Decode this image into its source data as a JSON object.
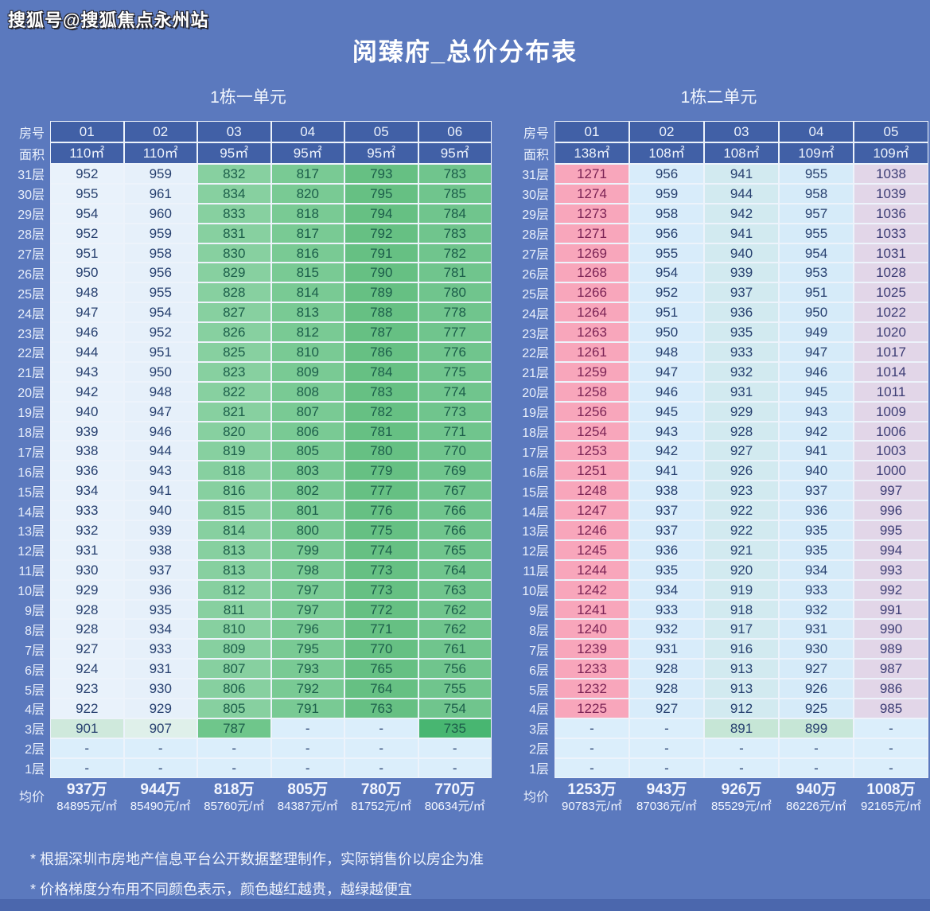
{
  "watermark": "搜狐号@搜狐焦点永州站",
  "title": "阅臻府_总价分布表",
  "labels": {
    "room": "房号",
    "area": "面积",
    "avg": "均价"
  },
  "footnotes": [
    "* 根据深圳市房地产信息平台公开数据整理制作，实际销售价以房企为准",
    "* 价格梯度分布用不同颜色表示，颜色越红越贵，越绿越便宜"
  ],
  "colors": {
    "page_bg": "#5b79be",
    "header_fill": "#4160a6",
    "grid_border": "#edf3fb",
    "footer_strip": "#4b67ad",
    "dash_fill": "#dbeefb",
    "navy_text": "#27406f",
    "green_text": "#1c5e4a",
    "pink_text": "#7b2355",
    "lavender_text": "#3c3c74"
  },
  "tables": [
    {
      "title": "1栋一单元",
      "columns": [
        "01",
        "02",
        "03",
        "04",
        "05",
        "06"
      ],
      "areas": [
        "110㎡",
        "110㎡",
        "95㎡",
        "95㎡",
        "95㎡",
        "95㎡"
      ],
      "col_fill": [
        "#e9f2fb",
        "#e6f0fa",
        "#87d0a0",
        "#79ca94",
        "#66c083",
        "#70c58d"
      ],
      "col_text": [
        "#27406f",
        "#27406f",
        "#1c5e4a",
        "#1c5e4a",
        "#1c5e4a",
        "#1c5e4a"
      ],
      "row_overrides": {
        "3层": {
          "fills": [
            "#cfe9dc",
            "#dff0ea",
            "#6fc68b",
            "#dbeefb",
            "#dbeefb",
            "#48b671"
          ],
          "texts": [
            "#27406f",
            "#27406f",
            "#1c5e4a",
            "#27406f",
            "#27406f",
            "#1c5e4a"
          ]
        },
        "2层": {
          "fills": [
            "#dbeefb",
            "#dbeefb",
            "#dbeefb",
            "#dbeefb",
            "#dbeefb",
            "#dbeefb"
          ],
          "texts": [
            "#27406f",
            "#27406f",
            "#27406f",
            "#27406f",
            "#27406f",
            "#27406f"
          ]
        },
        "1层": {
          "fills": [
            "#dbeefb",
            "#dbeefb",
            "#dbeefb",
            "#dbeefb",
            "#dbeefb",
            "#dbeefb"
          ],
          "texts": [
            "#27406f",
            "#27406f",
            "#27406f",
            "#27406f",
            "#27406f",
            "#27406f"
          ]
        }
      },
      "rows": [
        {
          "floor": "31层",
          "values": [
            "952",
            "959",
            "832",
            "817",
            "793",
            "783"
          ]
        },
        {
          "floor": "30层",
          "values": [
            "955",
            "961",
            "834",
            "820",
            "795",
            "785"
          ]
        },
        {
          "floor": "29层",
          "values": [
            "954",
            "960",
            "833",
            "818",
            "794",
            "784"
          ]
        },
        {
          "floor": "28层",
          "values": [
            "952",
            "959",
            "831",
            "817",
            "792",
            "783"
          ]
        },
        {
          "floor": "27层",
          "values": [
            "951",
            "958",
            "830",
            "816",
            "791",
            "782"
          ]
        },
        {
          "floor": "26层",
          "values": [
            "950",
            "956",
            "829",
            "815",
            "790",
            "781"
          ]
        },
        {
          "floor": "25层",
          "values": [
            "948",
            "955",
            "828",
            "814",
            "789",
            "780"
          ]
        },
        {
          "floor": "24层",
          "values": [
            "947",
            "954",
            "827",
            "813",
            "788",
            "778"
          ]
        },
        {
          "floor": "23层",
          "values": [
            "946",
            "952",
            "826",
            "812",
            "787",
            "777"
          ]
        },
        {
          "floor": "22层",
          "values": [
            "944",
            "951",
            "825",
            "810",
            "786",
            "776"
          ]
        },
        {
          "floor": "21层",
          "values": [
            "943",
            "950",
            "823",
            "809",
            "784",
            "775"
          ]
        },
        {
          "floor": "20层",
          "values": [
            "942",
            "948",
            "822",
            "808",
            "783",
            "774"
          ]
        },
        {
          "floor": "19层",
          "values": [
            "940",
            "947",
            "821",
            "807",
            "782",
            "773"
          ]
        },
        {
          "floor": "18层",
          "values": [
            "939",
            "946",
            "820",
            "806",
            "781",
            "771"
          ]
        },
        {
          "floor": "17层",
          "values": [
            "938",
            "944",
            "819",
            "805",
            "780",
            "770"
          ]
        },
        {
          "floor": "16层",
          "values": [
            "936",
            "943",
            "818",
            "803",
            "779",
            "769"
          ]
        },
        {
          "floor": "15层",
          "values": [
            "934",
            "941",
            "816",
            "802",
            "777",
            "767"
          ]
        },
        {
          "floor": "14层",
          "values": [
            "933",
            "940",
            "815",
            "801",
            "776",
            "766"
          ]
        },
        {
          "floor": "13层",
          "values": [
            "932",
            "939",
            "814",
            "800",
            "775",
            "766"
          ]
        },
        {
          "floor": "12层",
          "values": [
            "931",
            "938",
            "813",
            "799",
            "774",
            "765"
          ]
        },
        {
          "floor": "11层",
          "values": [
            "930",
            "937",
            "813",
            "798",
            "773",
            "764"
          ]
        },
        {
          "floor": "10层",
          "values": [
            "929",
            "936",
            "812",
            "797",
            "773",
            "763"
          ]
        },
        {
          "floor": "9层",
          "values": [
            "928",
            "935",
            "811",
            "797",
            "772",
            "762"
          ]
        },
        {
          "floor": "8层",
          "values": [
            "928",
            "934",
            "810",
            "796",
            "771",
            "762"
          ]
        },
        {
          "floor": "7层",
          "values": [
            "927",
            "933",
            "809",
            "795",
            "770",
            "761"
          ]
        },
        {
          "floor": "6层",
          "values": [
            "924",
            "931",
            "807",
            "793",
            "765",
            "756"
          ]
        },
        {
          "floor": "5层",
          "values": [
            "923",
            "930",
            "806",
            "792",
            "764",
            "755"
          ]
        },
        {
          "floor": "4层",
          "values": [
            "922",
            "929",
            "805",
            "791",
            "763",
            "754"
          ]
        },
        {
          "floor": "3层",
          "values": [
            "901",
            "907",
            "787",
            "-",
            "-",
            "735"
          ]
        },
        {
          "floor": "2层",
          "values": [
            "-",
            "-",
            "-",
            "-",
            "-",
            "-"
          ]
        },
        {
          "floor": "1层",
          "values": [
            "-",
            "-",
            "-",
            "-",
            "-",
            "-"
          ]
        }
      ],
      "avg_prices": [
        "937万",
        "944万",
        "818万",
        "805万",
        "780万",
        "770万"
      ],
      "avg_unit_prices": [
        "84895元/㎡",
        "85490元/㎡",
        "85760元/㎡",
        "84387元/㎡",
        "81752元/㎡",
        "80634元/㎡"
      ]
    },
    {
      "title": "1栋二单元",
      "columns": [
        "01",
        "02",
        "03",
        "04",
        "05"
      ],
      "areas": [
        "138㎡",
        "108㎡",
        "108㎡",
        "109㎡",
        "109㎡"
      ],
      "col_fill": [
        "#f8a6bb",
        "#d8ecfa",
        "#d2eaf0",
        "#d6ebf9",
        "#e2d6e8"
      ],
      "col_text": [
        "#7b2355",
        "#27406f",
        "#27406f",
        "#27406f",
        "#3c3c74"
      ],
      "row_overrides": {
        "3层": {
          "fills": [
            "#dbeefb",
            "#dbeefb",
            "#c6e6d6",
            "#c6e6d6",
            "#dbeefb"
          ],
          "texts": [
            "#27406f",
            "#27406f",
            "#27406f",
            "#27406f",
            "#27406f"
          ]
        },
        "2层": {
          "fills": [
            "#dbeefb",
            "#dbeefb",
            "#dbeefb",
            "#dbeefb",
            "#dbeefb"
          ],
          "texts": [
            "#27406f",
            "#27406f",
            "#27406f",
            "#27406f",
            "#27406f"
          ]
        },
        "1层": {
          "fills": [
            "#dbeefb",
            "#dbeefb",
            "#dbeefb",
            "#dbeefb",
            "#dbeefb"
          ],
          "texts": [
            "#27406f",
            "#27406f",
            "#27406f",
            "#27406f",
            "#27406f"
          ]
        }
      },
      "rows": [
        {
          "floor": "31层",
          "values": [
            "1271",
            "956",
            "941",
            "955",
            "1038"
          ]
        },
        {
          "floor": "30层",
          "values": [
            "1274",
            "959",
            "944",
            "958",
            "1039"
          ]
        },
        {
          "floor": "29层",
          "values": [
            "1273",
            "958",
            "942",
            "957",
            "1036"
          ]
        },
        {
          "floor": "28层",
          "values": [
            "1271",
            "956",
            "941",
            "955",
            "1033"
          ]
        },
        {
          "floor": "27层",
          "values": [
            "1269",
            "955",
            "940",
            "954",
            "1031"
          ]
        },
        {
          "floor": "26层",
          "values": [
            "1268",
            "954",
            "939",
            "953",
            "1028"
          ]
        },
        {
          "floor": "25层",
          "values": [
            "1266",
            "952",
            "937",
            "951",
            "1025"
          ]
        },
        {
          "floor": "24层",
          "values": [
            "1264",
            "951",
            "936",
            "950",
            "1022"
          ]
        },
        {
          "floor": "23层",
          "values": [
            "1263",
            "950",
            "935",
            "949",
            "1020"
          ]
        },
        {
          "floor": "22层",
          "values": [
            "1261",
            "948",
            "933",
            "947",
            "1017"
          ]
        },
        {
          "floor": "21层",
          "values": [
            "1259",
            "947",
            "932",
            "946",
            "1014"
          ]
        },
        {
          "floor": "20层",
          "values": [
            "1258",
            "946",
            "931",
            "945",
            "1011"
          ]
        },
        {
          "floor": "19层",
          "values": [
            "1256",
            "945",
            "929",
            "943",
            "1009"
          ]
        },
        {
          "floor": "18层",
          "values": [
            "1254",
            "943",
            "928",
            "942",
            "1006"
          ]
        },
        {
          "floor": "17层",
          "values": [
            "1253",
            "942",
            "927",
            "941",
            "1003"
          ]
        },
        {
          "floor": "16层",
          "values": [
            "1251",
            "941",
            "926",
            "940",
            "1000"
          ]
        },
        {
          "floor": "15层",
          "values": [
            "1248",
            "938",
            "923",
            "937",
            "997"
          ]
        },
        {
          "floor": "14层",
          "values": [
            "1247",
            "937",
            "922",
            "936",
            "996"
          ]
        },
        {
          "floor": "13层",
          "values": [
            "1246",
            "937",
            "922",
            "935",
            "995"
          ]
        },
        {
          "floor": "12层",
          "values": [
            "1245",
            "936",
            "921",
            "935",
            "994"
          ]
        },
        {
          "floor": "11层",
          "values": [
            "1244",
            "935",
            "920",
            "934",
            "993"
          ]
        },
        {
          "floor": "10层",
          "values": [
            "1242",
            "934",
            "919",
            "933",
            "992"
          ]
        },
        {
          "floor": "9层",
          "values": [
            "1241",
            "933",
            "918",
            "932",
            "991"
          ]
        },
        {
          "floor": "8层",
          "values": [
            "1240",
            "932",
            "917",
            "931",
            "990"
          ]
        },
        {
          "floor": "7层",
          "values": [
            "1239",
            "931",
            "916",
            "930",
            "989"
          ]
        },
        {
          "floor": "6层",
          "values": [
            "1233",
            "928",
            "913",
            "927",
            "987"
          ]
        },
        {
          "floor": "5层",
          "values": [
            "1232",
            "928",
            "913",
            "926",
            "986"
          ]
        },
        {
          "floor": "4层",
          "values": [
            "1225",
            "927",
            "912",
            "925",
            "985"
          ]
        },
        {
          "floor": "3层",
          "values": [
            "-",
            "-",
            "891",
            "899",
            "-"
          ]
        },
        {
          "floor": "2层",
          "values": [
            "-",
            "-",
            "-",
            "-",
            "-"
          ]
        },
        {
          "floor": "1层",
          "values": [
            "-",
            "-",
            "-",
            "-",
            "-"
          ]
        }
      ],
      "avg_prices": [
        "1253万",
        "943万",
        "926万",
        "940万",
        "1008万"
      ],
      "avg_unit_prices": [
        "90783元/㎡",
        "87036元/㎡",
        "85529元/㎡",
        "86226元/㎡",
        "92165元/㎡"
      ]
    }
  ]
}
